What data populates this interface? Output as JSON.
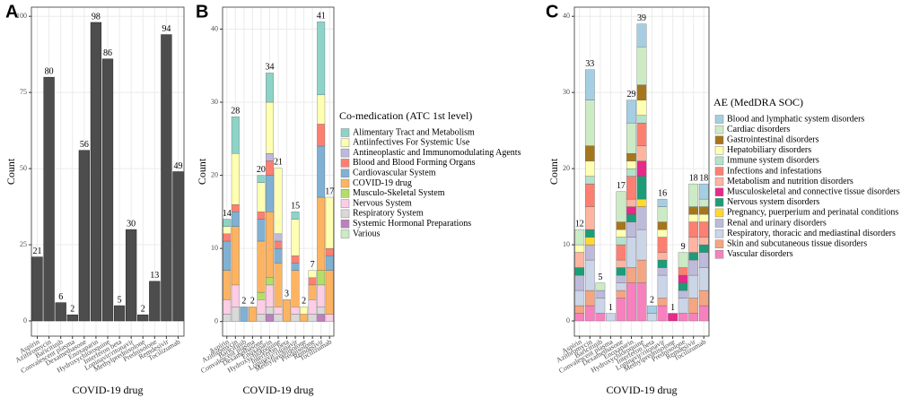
{
  "chart_data": [
    {
      "type": "bar",
      "panel": "A",
      "x_label": "COVID-19 drug",
      "y_label": "Count",
      "grid": true,
      "color": "#4d4d4d",
      "categories": [
        "Aspirin",
        "Azithromycin",
        "Baricitinib",
        "Convalescent plasma",
        "Dexamethasone",
        "Enoxaparin",
        "Hydroxychloroquine",
        "Interferon beta",
        "Lopinavir/ritonavir",
        "Methylprednisolone",
        "Prednisolone",
        "Remdesivir",
        "Tocilizumab"
      ],
      "values": [
        21,
        80,
        6,
        2,
        56,
        98,
        86,
        5,
        30,
        2,
        13,
        94,
        49
      ],
      "ylim": [
        -5,
        103
      ],
      "yticks": [
        0,
        25,
        50,
        75,
        100
      ]
    },
    {
      "type": "stacked_bar",
      "panel": "B",
      "x_label": "COVID-19 drug",
      "y_label": "Count",
      "grid": true,
      "legend_title": "Co-medication (ATC 1st level)",
      "categories": [
        "Aspirin",
        "Azithromycin",
        "Baricitinib",
        "Convalescent plasma",
        "Dexamethasone",
        "Enoxaparin",
        "Hydroxychloroquine",
        "Interferon beta",
        "Lopinavir/ritonavir",
        "Methylprednisolone",
        "Prednisolone",
        "Remdesivir",
        "Tocilizumab"
      ],
      "totals": [
        14,
        28,
        2,
        2,
        20,
        34,
        21,
        3,
        15,
        2,
        7,
        41,
        17
      ],
      "series": [
        {
          "name": "Alimentary Tract and Metabolism",
          "color": "#8dd3c7",
          "values": [
            1,
            5,
            0,
            0,
            1,
            4,
            0,
            0,
            1,
            0,
            0,
            10,
            0
          ]
        },
        {
          "name": "Antiinfectives For Systemic Use",
          "color": "#ffffb3",
          "values": [
            1,
            7,
            0,
            0,
            4,
            7,
            9,
            0,
            5,
            1,
            1,
            4,
            7
          ]
        },
        {
          "name": "Antineoplastic and Immunomodulating Agents",
          "color": "#bebada",
          "values": [
            0,
            0,
            0,
            0,
            0,
            1,
            1,
            0,
            0,
            0,
            0,
            0,
            0
          ]
        },
        {
          "name": "Blood and Blood Forming Organs",
          "color": "#fb8072",
          "values": [
            1,
            1,
            0,
            0,
            1,
            2,
            1,
            0,
            1,
            0,
            1,
            3,
            1
          ]
        },
        {
          "name": "Cardiovascular System",
          "color": "#80b1d3",
          "values": [
            4,
            2,
            2,
            0,
            3,
            5,
            2,
            0,
            1,
            0,
            0,
            7,
            2
          ]
        },
        {
          "name": "COVID-19 drug",
          "color": "#fdb462",
          "values": [
            4,
            8,
            0,
            2,
            7,
            9,
            6,
            3,
            5,
            1,
            2,
            10,
            6
          ]
        },
        {
          "name": "Musculo-Skeletal System",
          "color": "#b3de69",
          "values": [
            0,
            0,
            0,
            0,
            1,
            1,
            0,
            0,
            0,
            0,
            0,
            2,
            0
          ]
        },
        {
          "name": "Nervous System",
          "color": "#fccde5",
          "values": [
            2,
            3,
            0,
            0,
            2,
            3,
            1,
            0,
            1,
            0,
            2,
            3,
            1
          ]
        },
        {
          "name": "Respiratory System",
          "color": "#d9d9d9",
          "values": [
            1,
            2,
            0,
            0,
            1,
            1,
            1,
            0,
            1,
            0,
            1,
            1,
            0
          ]
        },
        {
          "name": "Systemic Hormonal Preparations",
          "color": "#bc80bd",
          "values": [
            0,
            0,
            0,
            0,
            0,
            1,
            0,
            0,
            0,
            0,
            0,
            1,
            0
          ]
        },
        {
          "name": "Various",
          "color": "#ccebc5",
          "values": [
            0,
            0,
            0,
            0,
            0,
            0,
            0,
            0,
            0,
            0,
            0,
            0,
            0
          ]
        }
      ],
      "ylim": [
        -2,
        43
      ],
      "yticks": [
        0,
        10,
        20,
        30,
        40
      ]
    },
    {
      "type": "stacked_bar",
      "panel": "C",
      "x_label": "COVID-19 drug",
      "y_label": "Count",
      "grid": true,
      "legend_title": "AE (MedDRA SOC)",
      "categories": [
        "Aspirin",
        "Azithromycin",
        "Baricitinib",
        "Convalescent plasma",
        "Dexamethasone",
        "Enoxaparin",
        "Hydroxychloroquine",
        "Interferon beta",
        "Lopinavir/ritonavir",
        "Methylprednisolone",
        "Prednisolone",
        "Remdesivir",
        "Tocilizumab"
      ],
      "totals": [
        12,
        33,
        5,
        1,
        17,
        29,
        39,
        2,
        16,
        1,
        9,
        18,
        18
      ],
      "series": [
        {
          "name": "Blood and lymphatic system disorders",
          "color": "#a6cee3",
          "values": [
            0,
            4,
            0,
            0,
            0,
            3,
            3,
            1,
            1,
            0,
            0,
            0,
            2
          ]
        },
        {
          "name": "Cardiac disorders",
          "color": "#ccebc5",
          "values": [
            2,
            6,
            1,
            0,
            4,
            4,
            5,
            0,
            2,
            0,
            2,
            3,
            1
          ]
        },
        {
          "name": "Gastrointestinal disorders",
          "color": "#a6761d",
          "values": [
            0,
            2,
            0,
            0,
            1,
            1,
            2,
            0,
            1,
            0,
            0,
            1,
            1
          ]
        },
        {
          "name": "Hepatobiliary disorders",
          "color": "#ffffb3",
          "values": [
            1,
            2,
            0,
            0,
            1,
            1,
            2,
            0,
            1,
            0,
            0,
            1,
            1
          ]
        },
        {
          "name": "Immune system disorders",
          "color": "#b3e2cd",
          "values": [
            0,
            1,
            0,
            0,
            1,
            1,
            1,
            0,
            0,
            0,
            0,
            0,
            0
          ]
        },
        {
          "name": "Infections and infestations",
          "color": "#fb8072",
          "values": [
            0,
            3,
            0,
            0,
            2,
            3,
            3,
            0,
            2,
            0,
            1,
            2,
            2
          ]
        },
        {
          "name": "Metabolism and nutrition disorders",
          "color": "#fdb4a0",
          "values": [
            2,
            3,
            0,
            0,
            1,
            1,
            2,
            0,
            1,
            0,
            0,
            2,
            1
          ]
        },
        {
          "name": "Musculoskeletal and connective tissue disorders",
          "color": "#e7298a",
          "values": [
            0,
            0,
            0,
            0,
            0,
            1,
            2,
            0,
            0,
            1,
            1,
            0,
            0
          ]
        },
        {
          "name": "Nervous system disorders",
          "color": "#1b9e77",
          "values": [
            1,
            1,
            0,
            0,
            1,
            1,
            3,
            0,
            1,
            0,
            1,
            1,
            1
          ]
        },
        {
          "name": "Pregnancy, puerperium and perinatal conditions",
          "color": "#ffd92f",
          "values": [
            0,
            1,
            0,
            0,
            0,
            0,
            1,
            0,
            0,
            0,
            0,
            0,
            0
          ]
        },
        {
          "name": "Renal and urinary disorders",
          "color": "#bebada",
          "values": [
            2,
            2,
            1,
            0,
            1,
            2,
            3,
            0,
            1,
            0,
            1,
            2,
            2
          ]
        },
        {
          "name": "Respiratory, thoracic and mediastinal disorders",
          "color": "#cbd5e8",
          "values": [
            2,
            4,
            2,
            1,
            1,
            4,
            4,
            1,
            3,
            0,
            2,
            3,
            3
          ]
        },
        {
          "name": "Skin and subcutaneous tissue disorders",
          "color": "#f4a582",
          "values": [
            1,
            2,
            0,
            0,
            1,
            2,
            3,
            0,
            1,
            0,
            0,
            2,
            2
          ]
        },
        {
          "name": "Vascular disorders",
          "color": "#f781bf",
          "values": [
            1,
            2,
            1,
            0,
            3,
            5,
            5,
            0,
            2,
            0,
            1,
            1,
            2
          ]
        }
      ],
      "ylim": [
        -2,
        41.2
      ],
      "yticks": [
        0,
        10,
        20,
        30,
        40
      ]
    }
  ]
}
